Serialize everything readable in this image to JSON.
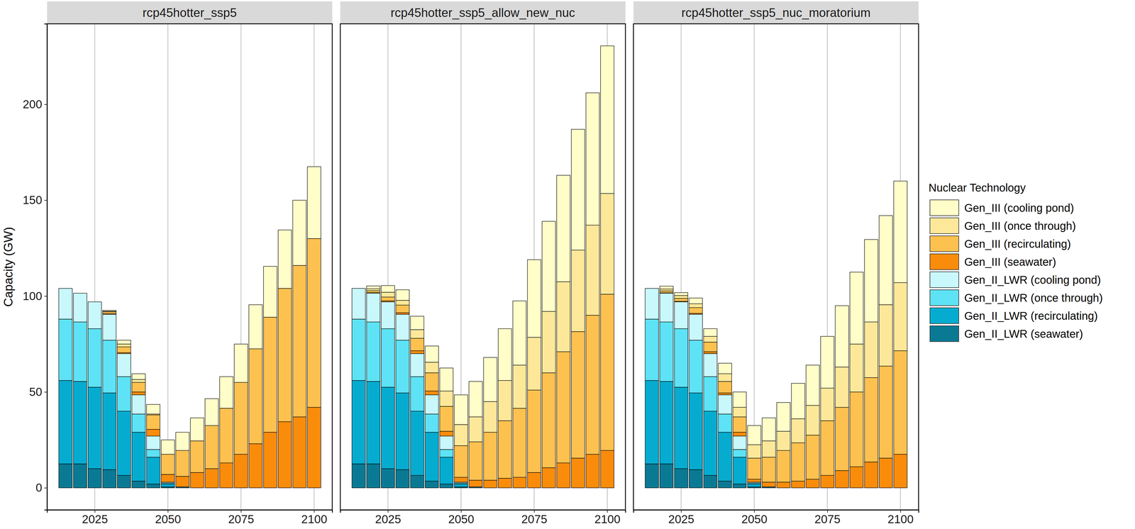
{
  "chart_data": {
    "type": "bar",
    "stacked": true,
    "grid": "x",
    "legend": "right",
    "y_label": "Capacity (GW)",
    "legend_title": "Nuclear Technology",
    "x": [
      2015,
      2020,
      2025,
      2030,
      2035,
      2040,
      2045,
      2050,
      2055,
      2060,
      2065,
      2070,
      2075,
      2080,
      2085,
      2090,
      2095,
      2100
    ],
    "xlim": [
      2008.7,
      2106.2
    ],
    "xticks": [
      2025,
      2050,
      2075,
      2100
    ],
    "ylim": [
      -11.5,
      242
    ],
    "yticks": [
      0,
      50,
      100,
      150,
      200
    ],
    "series": [
      {
        "name": "Gen_III (cooling pond)",
        "color": "#fffdc8"
      },
      {
        "name": "Gen_III (once through)",
        "color": "#fde89a"
      },
      {
        "name": "Gen_III (recirculating)",
        "color": "#fdc150"
      },
      {
        "name": "Gen_III (seawater)",
        "color": "#fa8c0c"
      },
      {
        "name": "Gen_II_LWR (cooling pond)",
        "color": "#c8f8fc"
      },
      {
        "name": "Gen_II_LWR (once through)",
        "color": "#5de3f5"
      },
      {
        "name": "Gen_II_LWR (recirculating)",
        "color": "#06acd0"
      },
      {
        "name": "Gen_II_LWR (seawater)",
        "color": "#0a7a94"
      }
    ],
    "panels": [
      {
        "title": "rcp45hotter_ssp5",
        "values": [
          [
            0,
            0,
            0,
            0.5,
            2,
            3,
            5,
            7.5,
            9.5,
            12,
            14,
            16.5,
            20,
            23,
            26.5,
            30.5,
            34,
            37.5
          ],
          [
            0,
            0,
            0,
            0.3,
            1.5,
            1.5,
            0.5,
            0,
            0,
            0,
            0,
            0,
            0,
            0,
            0,
            0,
            0,
            0
          ],
          [
            0,
            0,
            0,
            1,
            3,
            5,
            7.5,
            10.5,
            13.5,
            16.5,
            22.5,
            28.5,
            37.5,
            49.5,
            60,
            69.5,
            79,
            88
          ],
          [
            0,
            0,
            0,
            0.3,
            0.5,
            1.5,
            3.5,
            4,
            5.5,
            8,
            10,
            13,
            17.5,
            23,
            29,
            34.5,
            37,
            42
          ],
          [
            16,
            15,
            14,
            13.5,
            12,
            10,
            7,
            0.5,
            0,
            0,
            0,
            0,
            0,
            0,
            0,
            0,
            0,
            0
          ],
          [
            32,
            31,
            30.5,
            27.5,
            18,
            9.5,
            4,
            0.5,
            0,
            0,
            0,
            0,
            0,
            0,
            0,
            0,
            0,
            0
          ],
          [
            43.5,
            43,
            42.5,
            40,
            33.5,
            25.5,
            14,
            1.5,
            0,
            0,
            0,
            0,
            0,
            0,
            0,
            0,
            0,
            0
          ],
          [
            12.5,
            12.5,
            10,
            9.5,
            6.5,
            3.5,
            2,
            0.5,
            0.5,
            0,
            0,
            0,
            0,
            0,
            0,
            0,
            0,
            0
          ]
        ]
      },
      {
        "title": "rcp45hotter_ssp5_allow_new_nuc",
        "values": [
          [
            0,
            1.5,
            3.5,
            5.5,
            7,
            8.5,
            12,
            15.5,
            18.5,
            23,
            27,
            33.5,
            40.5,
            47,
            55.5,
            63,
            69,
            77
          ],
          [
            0,
            1,
            2.5,
            2.5,
            4.5,
            5.5,
            8,
            11,
            13,
            16,
            21,
            22.5,
            27.5,
            32,
            36.5,
            42.5,
            47,
            52.5
          ],
          [
            0,
            1,
            2,
            4,
            6.5,
            9.5,
            13,
            16.5,
            20,
            25,
            30,
            36,
            43,
            49.5,
            58,
            66,
            72.5,
            81.5
          ],
          [
            0,
            0.3,
            0.5,
            0.8,
            1.5,
            2,
            2.5,
            2.5,
            3.5,
            4,
            5,
            5.5,
            8,
            10.5,
            13,
            15.5,
            17.5,
            19.5
          ],
          [
            16,
            15,
            14,
            13.5,
            12,
            10,
            7,
            0.5,
            0,
            0,
            0,
            0,
            0,
            0,
            0,
            0,
            0,
            0
          ],
          [
            32,
            31,
            30.5,
            27.5,
            18,
            9.5,
            4,
            0.5,
            0,
            0,
            0,
            0,
            0,
            0,
            0,
            0,
            0,
            0
          ],
          [
            43.5,
            43,
            42.5,
            40,
            33.5,
            25.5,
            14,
            1.5,
            0,
            0,
            0,
            0,
            0,
            0,
            0,
            0,
            0,
            0
          ],
          [
            12.5,
            12.5,
            10,
            9.5,
            6.5,
            3.5,
            2,
            0.5,
            0.5,
            0,
            0,
            0,
            0,
            0,
            0,
            0,
            0,
            0
          ]
        ]
      },
      {
        "title": "rcp45hotter_ssp5_nuc_moratorium",
        "values": [
          [
            0,
            1.5,
            1.5,
            3,
            4,
            5.5,
            8,
            10,
            12,
            15,
            18.5,
            21,
            27,
            32,
            37.5,
            43,
            46.5,
            53
          ],
          [
            0,
            1,
            1.5,
            2,
            3,
            4,
            5,
            7,
            8.5,
            10,
            12.5,
            15.5,
            17,
            21,
            25,
            29,
            32,
            35.5
          ],
          [
            0,
            1,
            1.5,
            3,
            5,
            6,
            8,
            11,
            13,
            16.5,
            20,
            23,
            28.5,
            33,
            39,
            44,
            48,
            54
          ],
          [
            0,
            0.2,
            0.3,
            0.5,
            1,
            1,
            2,
            1.5,
            2.5,
            3,
            3.5,
            4.5,
            6.5,
            9,
            11,
            13.5,
            15.5,
            17.5
          ],
          [
            16,
            15,
            14,
            13.5,
            12,
            10,
            7,
            0.5,
            0,
            0,
            0,
            0,
            0,
            0,
            0,
            0,
            0,
            0
          ],
          [
            32,
            31,
            30.5,
            27.5,
            18,
            9.5,
            4,
            0.5,
            0,
            0,
            0,
            0,
            0,
            0,
            0,
            0,
            0,
            0
          ],
          [
            43.5,
            43,
            42.5,
            40,
            33.5,
            25.5,
            14,
            1.5,
            0,
            0,
            0,
            0,
            0,
            0,
            0,
            0,
            0,
            0
          ],
          [
            12.5,
            12.5,
            10,
            9.5,
            6.5,
            3.5,
            2,
            0.5,
            0.5,
            0,
            0,
            0,
            0,
            0,
            0,
            0,
            0,
            0
          ]
        ]
      }
    ]
  }
}
